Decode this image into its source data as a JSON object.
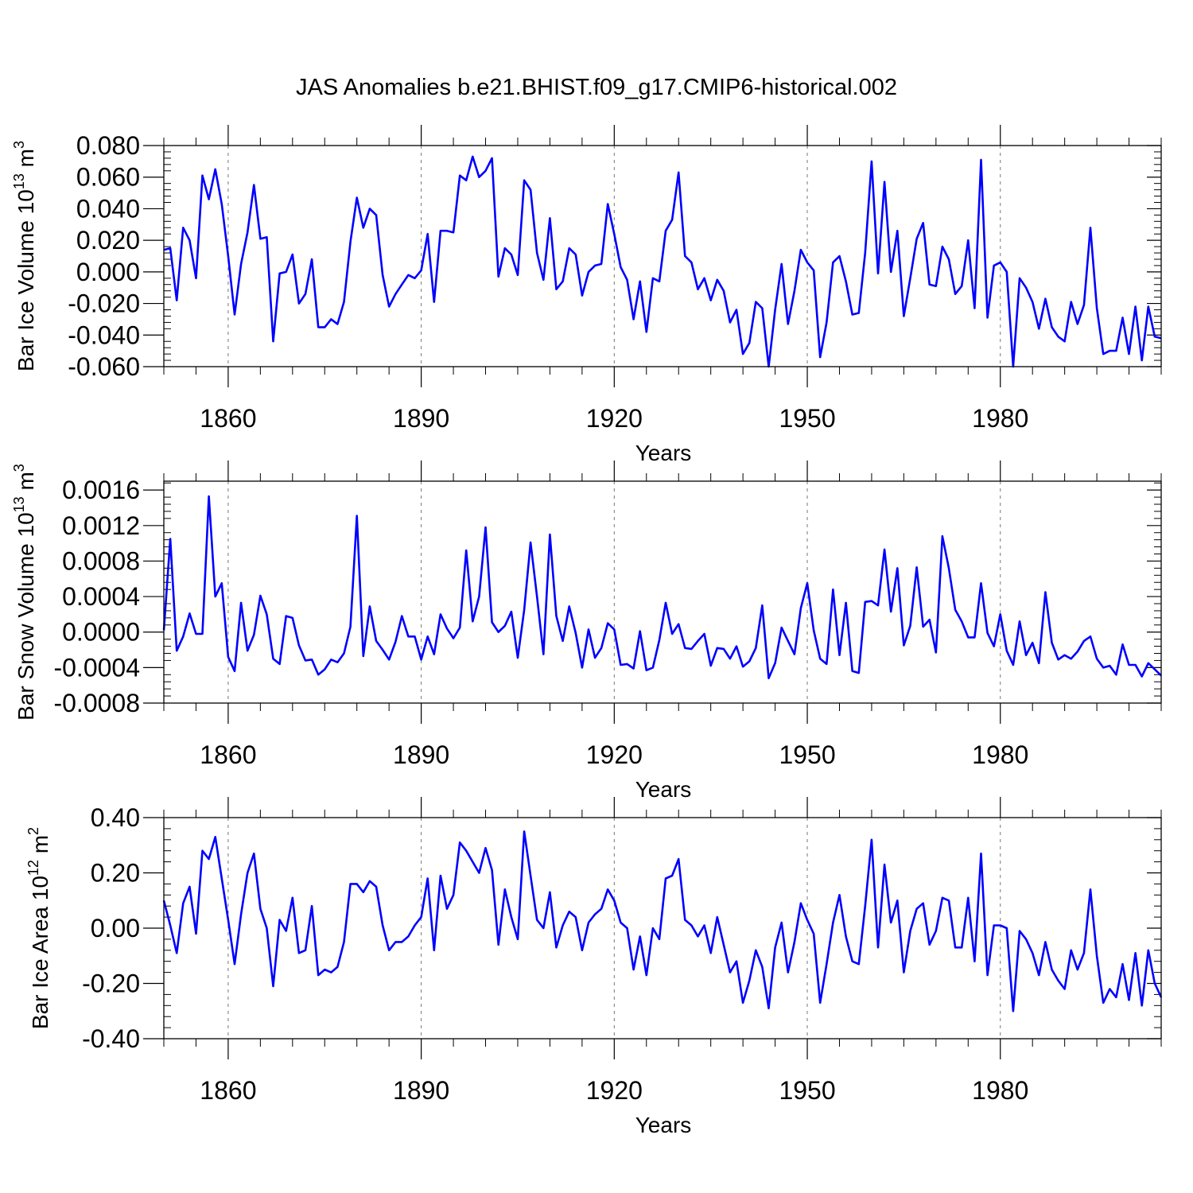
{
  "figure_title": "JAS Anomalies b.e21.BHIST.f09_g17.CMIP6-historical.002",
  "series_color": "#0000ff",
  "chart_data": [
    {
      "type": "line",
      "name": "Bar Ice Volume",
      "ylabel_main": "Bar Ice Volume 10",
      "ylabel_exp": "13",
      "ylabel_unit": " m",
      "ylabel_unit_exp": "3",
      "xlabel": "Years",
      "xlim": [
        1850,
        2005
      ],
      "ylim": [
        -0.06,
        0.08
      ],
      "xticks": [
        1860,
        1890,
        1920,
        1950,
        1980
      ],
      "xtick_labels": [
        "1860",
        "1890",
        "1920",
        "1950",
        "1980"
      ],
      "yticks": [
        -0.06,
        -0.04,
        -0.02,
        0.0,
        0.02,
        0.04,
        0.06,
        0.08
      ],
      "ytick_labels": [
        "-0.060",
        "-0.040",
        "-0.020",
        "0.000",
        "0.020",
        "0.040",
        "0.060",
        "0.080"
      ],
      "grid": "vertical dashed at major x ticks",
      "x_start": 1850,
      "values": [
        0.014,
        0.015,
        -0.018,
        0.028,
        0.02,
        -0.004,
        0.061,
        0.046,
        0.065,
        0.043,
        0.01,
        -0.027,
        0.005,
        0.025,
        0.055,
        0.021,
        0.022,
        -0.044,
        -0.001,
        0.0,
        0.011,
        -0.02,
        -0.014,
        0.008,
        -0.035,
        -0.035,
        -0.03,
        -0.033,
        -0.019,
        0.019,
        0.047,
        0.028,
        0.04,
        0.036,
        -0.002,
        -0.022,
        -0.014,
        -0.008,
        -0.002,
        -0.004,
        0.001,
        0.024,
        -0.019,
        0.026,
        0.026,
        0.025,
        0.061,
        0.058,
        0.073,
        0.06,
        0.064,
        0.072,
        -0.003,
        0.015,
        0.011,
        -0.002,
        0.058,
        0.052,
        0.012,
        -0.005,
        0.034,
        -0.011,
        -0.006,
        0.015,
        0.011,
        -0.015,
        0.0,
        0.004,
        0.005,
        0.043,
        0.024,
        0.003,
        -0.005,
        -0.03,
        -0.006,
        -0.038,
        -0.004,
        -0.006,
        0.026,
        0.033,
        0.063,
        0.01,
        0.006,
        -0.011,
        -0.004,
        -0.018,
        -0.005,
        -0.012,
        -0.032,
        -0.024,
        -0.052,
        -0.045,
        -0.019,
        -0.023,
        -0.06,
        -0.024,
        0.005,
        -0.033,
        -0.012,
        0.014,
        0.006,
        0.001,
        -0.054,
        -0.032,
        0.006,
        0.01,
        -0.006,
        -0.027,
        -0.026,
        0.012,
        0.07,
        -0.001,
        0.057,
        0.0,
        0.026,
        -0.028,
        -0.004,
        0.021,
        0.031,
        -0.008,
        -0.009,
        0.016,
        0.008,
        -0.014,
        -0.009,
        0.02,
        -0.023,
        0.071,
        -0.029,
        0.004,
        0.006,
        0.0,
        -0.06,
        -0.004,
        -0.01,
        -0.019,
        -0.036,
        -0.017,
        -0.035,
        -0.041,
        -0.044,
        -0.019,
        -0.033,
        -0.021,
        0.028,
        -0.023,
        -0.052,
        -0.05,
        -0.05,
        -0.029,
        -0.052,
        -0.022,
        -0.056,
        -0.022,
        -0.041,
        -0.042
      ]
    },
    {
      "type": "line",
      "name": "Bar Snow Volume",
      "ylabel_main": "Bar Snow Volume 10",
      "ylabel_exp": "13",
      "ylabel_unit": " m",
      "ylabel_unit_exp": "3",
      "xlabel": "Years",
      "xlim": [
        1850,
        2005
      ],
      "ylim": [
        -0.0008,
        0.0017
      ],
      "xticks": [
        1860,
        1890,
        1920,
        1950,
        1980
      ],
      "xtick_labels": [
        "1860",
        "1890",
        "1920",
        "1950",
        "1980"
      ],
      "yticks": [
        -0.0008,
        -0.0004,
        0.0,
        0.0004,
        0.0008,
        0.0012,
        0.0016
      ],
      "ytick_labels": [
        "-0.0008",
        "-0.0004",
        "0.0000",
        "0.0004",
        "0.0008",
        "0.0012",
        "0.0016"
      ],
      "grid": "vertical dashed at major x ticks",
      "x_start": 1850,
      "values": [
        2e-05,
        0.00105,
        -0.00021,
        -5e-05,
        0.00021,
        -2e-05,
        -2e-05,
        0.00153,
        0.0004,
        0.00055,
        -0.00028,
        -0.00044,
        0.00033,
        -0.00021,
        -3e-05,
        0.00041,
        0.0002,
        -0.0003,
        -0.00036,
        0.00018,
        0.00016,
        -0.00015,
        -0.00032,
        -0.00031,
        -0.00048,
        -0.00042,
        -0.00031,
        -0.00034,
        -0.00024,
        6e-05,
        0.00131,
        -0.00027,
        0.00029,
        -0.0001,
        -0.0002,
        -0.00031,
        -0.00011,
        0.00018,
        -5e-05,
        -5e-05,
        -0.00031,
        -5e-05,
        -0.00025,
        0.0002,
        4e-05,
        -7e-05,
        5e-05,
        0.00092,
        0.00012,
        0.0004,
        0.00118,
        0.00011,
        0.0,
        7e-05,
        0.00023,
        -0.00029,
        0.00025,
        0.00101,
        0.0004,
        -0.00025,
        0.0011,
        0.00018,
        -0.0001,
        0.00029,
        -1e-05,
        -0.0004,
        3e-05,
        -0.00029,
        -0.00018,
        0.0001,
        3e-05,
        -0.00037,
        -0.00036,
        -0.00041,
        1e-05,
        -0.00043,
        -0.0004,
        -9e-05,
        0.00033,
        -2e-05,
        9e-05,
        -0.00018,
        -0.00019,
        -0.0001,
        -2e-05,
        -0.00038,
        -0.00018,
        -0.00019,
        -0.0003,
        -0.00016,
        -0.00039,
        -0.00033,
        -0.00018,
        0.0003,
        -0.00052,
        -0.00035,
        5e-05,
        -0.0001,
        -0.00025,
        0.00027,
        0.00055,
        2e-05,
        -0.0003,
        -0.00036,
        0.00048,
        -0.00026,
        0.00033,
        -0.00044,
        -0.00046,
        0.00034,
        0.00035,
        0.0003,
        0.00093,
        0.00023,
        0.00072,
        -0.00015,
        7e-05,
        0.00073,
        6e-05,
        0.00014,
        -0.00023,
        0.00108,
        0.00072,
        0.00025,
        0.00012,
        -6e-05,
        -6e-05,
        0.00055,
        -1e-05,
        -0.00016,
        0.0002,
        -0.00021,
        -0.00037,
        0.00012,
        -0.00026,
        -0.00012,
        -0.00035,
        0.00045,
        -0.00012,
        -0.00031,
        -0.00026,
        -0.0003,
        -0.00022,
        -0.0001,
        -5e-05,
        -0.0003,
        -0.0004,
        -0.00038,
        -0.00048,
        -0.00014,
        -0.00037,
        -0.00037,
        -0.0005,
        -0.00035,
        -0.00042,
        -0.00049
      ]
    },
    {
      "type": "line",
      "name": "Bar Ice Area",
      "ylabel_main": "Bar Ice Area 10",
      "ylabel_exp": "12",
      "ylabel_unit": " m",
      "ylabel_unit_exp": "2",
      "xlabel": "Years",
      "xlim": [
        1850,
        2005
      ],
      "ylim": [
        -0.4,
        0.4
      ],
      "xticks": [
        1860,
        1890,
        1920,
        1950,
        1980
      ],
      "xtick_labels": [
        "1860",
        "1890",
        "1920",
        "1950",
        "1980"
      ],
      "yticks": [
        -0.4,
        -0.2,
        0.0,
        0.2,
        0.4
      ],
      "ytick_labels": [
        "-0.40",
        "-0.20",
        "0.00",
        "0.20",
        "0.40"
      ],
      "grid": "vertical dashed at major x ticks",
      "x_start": 1850,
      "values": [
        0.1,
        0.01,
        -0.09,
        0.09,
        0.15,
        -0.02,
        0.28,
        0.25,
        0.33,
        0.18,
        0.03,
        -0.13,
        0.05,
        0.2,
        0.27,
        0.07,
        0.0,
        -0.21,
        0.03,
        -0.01,
        0.11,
        -0.09,
        -0.08,
        0.08,
        -0.17,
        -0.15,
        -0.16,
        -0.14,
        -0.05,
        0.16,
        0.16,
        0.13,
        0.17,
        0.15,
        0.01,
        -0.08,
        -0.05,
        -0.05,
        -0.03,
        0.01,
        0.04,
        0.18,
        -0.08,
        0.19,
        0.07,
        0.12,
        0.31,
        0.28,
        0.24,
        0.2,
        0.29,
        0.21,
        -0.06,
        0.14,
        0.04,
        -0.04,
        0.35,
        0.19,
        0.03,
        0.0,
        0.13,
        -0.07,
        0.01,
        0.06,
        0.04,
        -0.08,
        0.02,
        0.05,
        0.07,
        0.14,
        0.1,
        0.02,
        0.0,
        -0.15,
        -0.03,
        -0.17,
        0.0,
        -0.04,
        0.18,
        0.19,
        0.25,
        0.03,
        0.01,
        -0.03,
        0.01,
        -0.09,
        0.04,
        -0.06,
        -0.16,
        -0.12,
        -0.27,
        -0.19,
        -0.08,
        -0.14,
        -0.29,
        -0.07,
        0.02,
        -0.16,
        -0.05,
        0.09,
        0.03,
        -0.02,
        -0.27,
        -0.13,
        0.02,
        0.12,
        -0.03,
        -0.12,
        -0.13,
        0.08,
        0.32,
        -0.07,
        0.23,
        0.02,
        0.1,
        -0.16,
        -0.01,
        0.07,
        0.09,
        -0.06,
        -0.01,
        0.11,
        0.1,
        -0.07,
        -0.07,
        0.11,
        -0.12,
        0.27,
        -0.17,
        0.01,
        0.01,
        0.0,
        -0.3,
        -0.01,
        -0.04,
        -0.09,
        -0.17,
        -0.05,
        -0.15,
        -0.19,
        -0.22,
        -0.08,
        -0.15,
        -0.09,
        0.14,
        -0.1,
        -0.27,
        -0.22,
        -0.25,
        -0.13,
        -0.26,
        -0.09,
        -0.28,
        -0.08,
        -0.2,
        -0.25
      ]
    }
  ]
}
